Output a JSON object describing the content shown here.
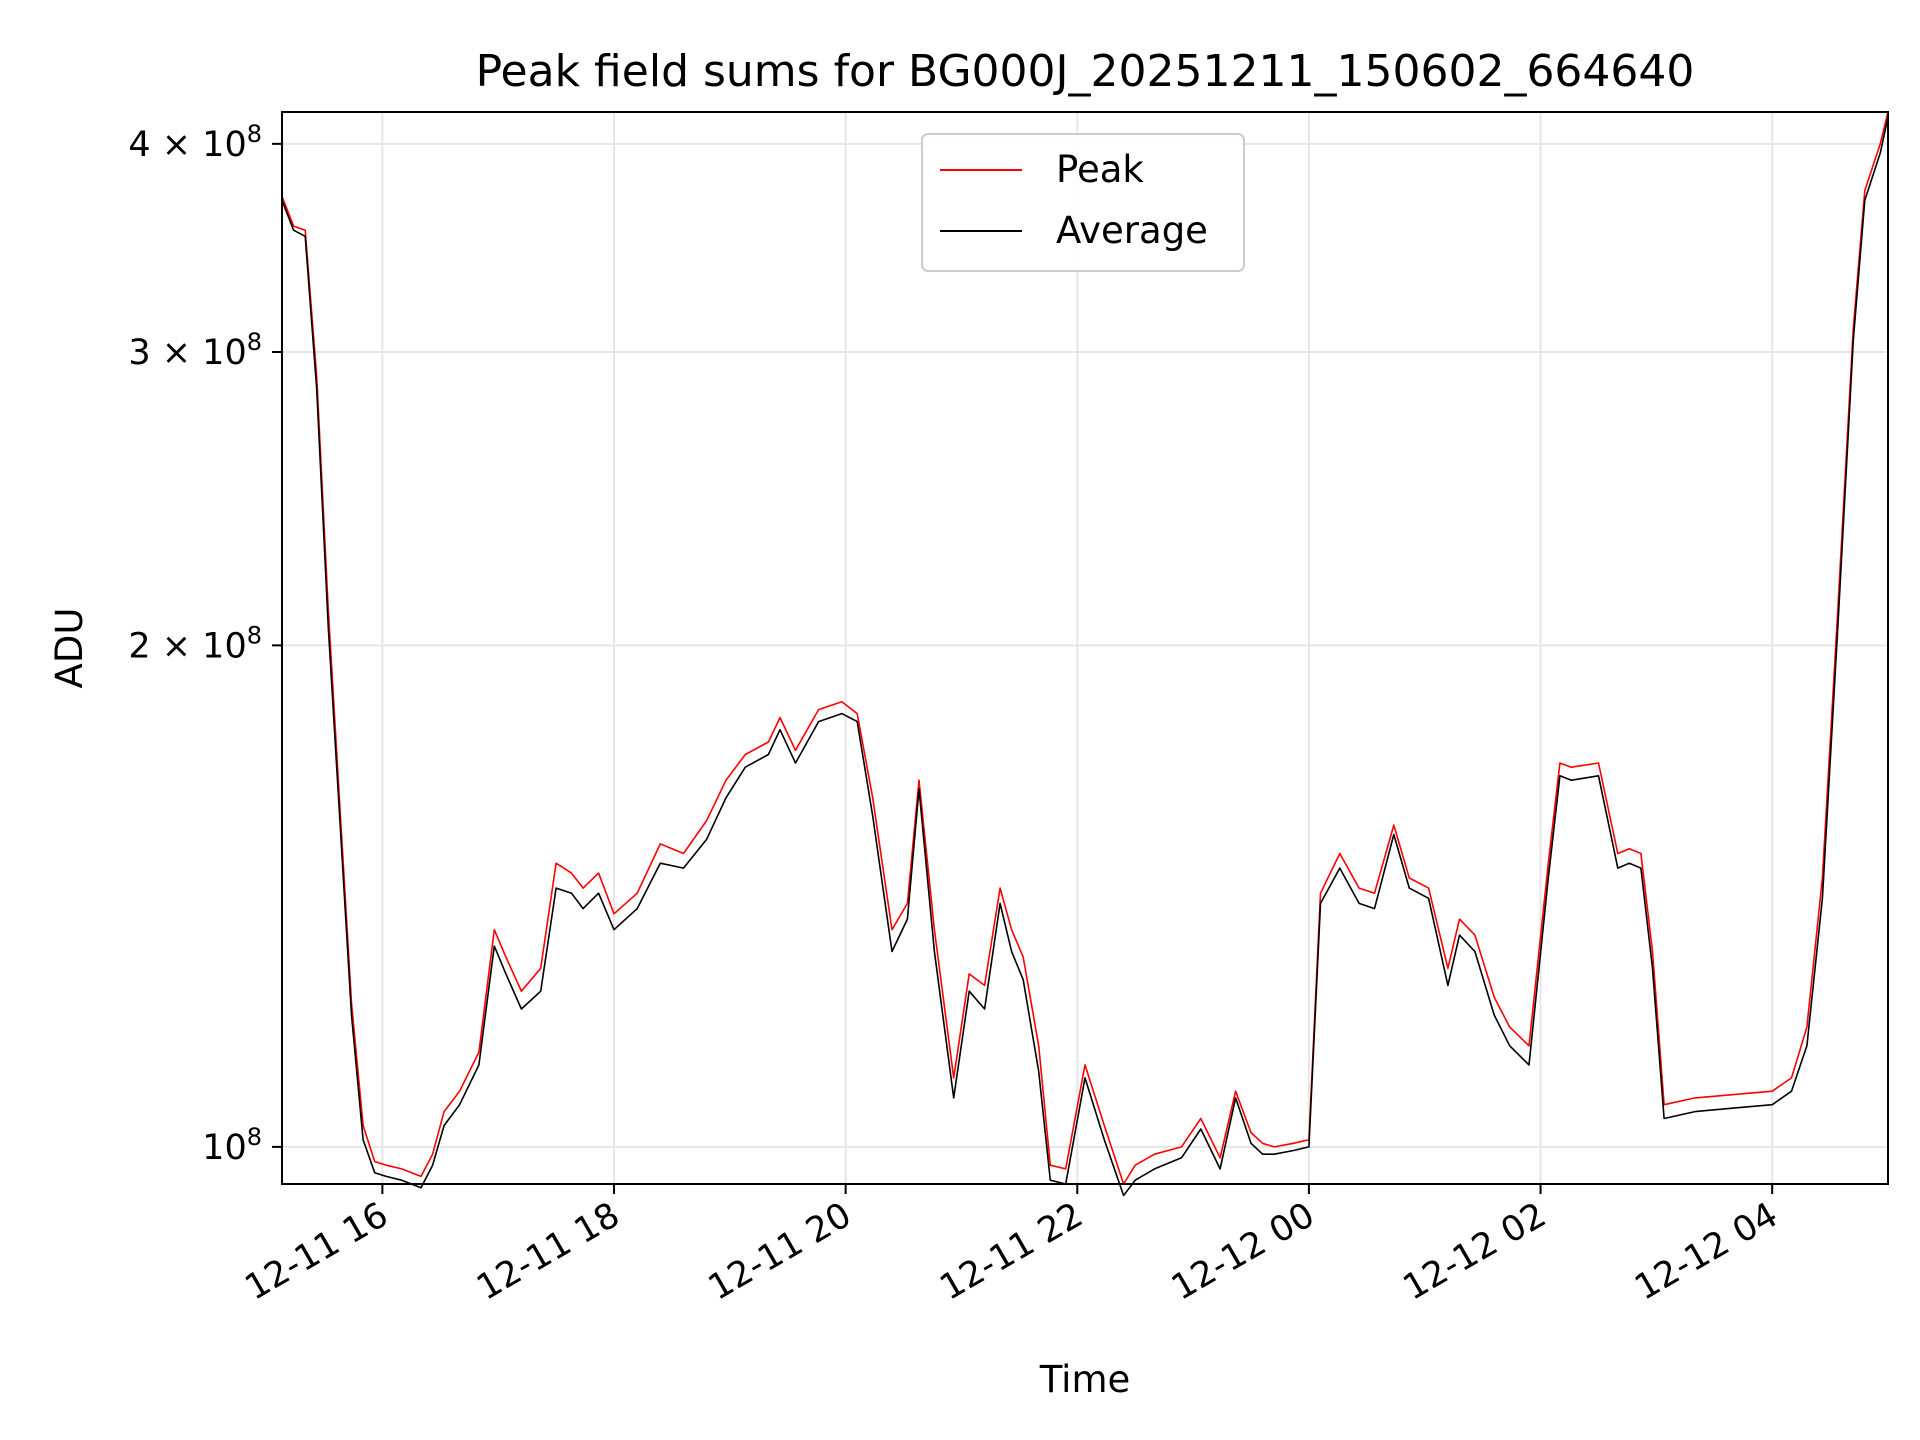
{
  "chart_data": {
    "type": "line",
    "title": "Peak field sums for BG000J_20251211_150602_664640",
    "xlabel": "Time",
    "ylabel": "ADU",
    "yscale": "log",
    "grid": true,
    "legend_position": "upper center",
    "xlim": [
      "2025-12-11 15:08",
      "2025-12-12 05:00"
    ],
    "ylim": [
      95000000,
      418000000
    ],
    "xticks": [
      {
        "value": "2025-12-11 16:00",
        "label": "12-11 16"
      },
      {
        "value": "2025-12-11 18:00",
        "label": "12-11 18"
      },
      {
        "value": "2025-12-11 20:00",
        "label": "12-11 20"
      },
      {
        "value": "2025-12-11 22:00",
        "label": "12-11 22"
      },
      {
        "value": "2025-12-12 00:00",
        "label": "12-12 00"
      },
      {
        "value": "2025-12-12 02:00",
        "label": "12-12 02"
      },
      {
        "value": "2025-12-12 04:00",
        "label": "12-12 04"
      }
    ],
    "yticks": [
      {
        "value": 100000000,
        "base": "10",
        "exp": "8"
      },
      {
        "value": 200000000,
        "base": "2 × 10",
        "exp": "8"
      },
      {
        "value": 300000000,
        "base": "3 × 10",
        "exp": "8"
      },
      {
        "value": 400000000,
        "base": "4 × 10",
        "exp": "8"
      }
    ],
    "colors": {
      "peak": "#ff0000",
      "average": "#000000",
      "grid": "#e6e6e6"
    },
    "series": [
      {
        "name": "Peak",
        "color": "#ff0000",
        "x": [
          "2025-12-11 15:08",
          "2025-12-11 15:14",
          "2025-12-11 15:20",
          "2025-12-11 15:26",
          "2025-12-11 15:32",
          "2025-12-11 15:38",
          "2025-12-11 15:44",
          "2025-12-11 15:50",
          "2025-12-11 15:56",
          "2025-12-11 16:02",
          "2025-12-11 16:10",
          "2025-12-11 16:20",
          "2025-12-11 16:26",
          "2025-12-11 16:32",
          "2025-12-11 16:40",
          "2025-12-11 16:50",
          "2025-12-11 16:58",
          "2025-12-11 17:04",
          "2025-12-11 17:12",
          "2025-12-11 17:22",
          "2025-12-11 17:30",
          "2025-12-11 17:38",
          "2025-12-11 17:44",
          "2025-12-11 17:52",
          "2025-12-11 18:00",
          "2025-12-11 18:12",
          "2025-12-11 18:24",
          "2025-12-11 18:36",
          "2025-12-11 18:48",
          "2025-12-11 18:58",
          "2025-12-11 19:08",
          "2025-12-11 19:20",
          "2025-12-11 19:26",
          "2025-12-11 19:34",
          "2025-12-11 19:46",
          "2025-12-11 19:58",
          "2025-12-11 20:06",
          "2025-12-11 20:14",
          "2025-12-11 20:24",
          "2025-12-11 20:32",
          "2025-12-11 20:38",
          "2025-12-11 20:46",
          "2025-12-11 20:56",
          "2025-12-11 21:04",
          "2025-12-11 21:12",
          "2025-12-11 21:20",
          "2025-12-11 21:26",
          "2025-12-11 21:32",
          "2025-12-11 21:40",
          "2025-12-11 21:46",
          "2025-12-11 21:54",
          "2025-12-11 22:04",
          "2025-12-11 22:14",
          "2025-12-11 22:24",
          "2025-12-11 22:30",
          "2025-12-11 22:40",
          "2025-12-11 22:54",
          "2025-12-11 23:04",
          "2025-12-11 23:14",
          "2025-12-11 23:22",
          "2025-12-11 23:30",
          "2025-12-11 23:36",
          "2025-12-11 23:42",
          "2025-12-11 23:52",
          "2025-12-12 00:00",
          "2025-12-12 00:06",
          "2025-12-12 00:16",
          "2025-12-12 00:26",
          "2025-12-12 00:34",
          "2025-12-12 00:44",
          "2025-12-12 00:52",
          "2025-12-12 01:02",
          "2025-12-12 01:12",
          "2025-12-12 01:18",
          "2025-12-12 01:26",
          "2025-12-12 01:36",
          "2025-12-12 01:44",
          "2025-12-12 01:54",
          "2025-12-12 02:04",
          "2025-12-12 02:10",
          "2025-12-12 02:16",
          "2025-12-12 02:30",
          "2025-12-12 02:40",
          "2025-12-12 02:46",
          "2025-12-12 02:52",
          "2025-12-12 02:58",
          "2025-12-12 03:04",
          "2025-12-12 03:20",
          "2025-12-12 03:40",
          "2025-12-12 04:00",
          "2025-12-12 04:10",
          "2025-12-12 04:18",
          "2025-12-12 04:26",
          "2025-12-12 04:34",
          "2025-12-12 04:42",
          "2025-12-12 04:48",
          "2025-12-12 04:56",
          "2025-12-12 05:00"
        ],
        "y": [
          372000000,
          357000000,
          355000000,
          290000000,
          210000000,
          160000000,
          122000000,
          103000000,
          98000000,
          97500000,
          97000000,
          96000000,
          99000000,
          105000000,
          108000000,
          114000000,
          135000000,
          130000000,
          124000000,
          128000000,
          148000000,
          146000000,
          143000000,
          146000000,
          138000000,
          142000000,
          152000000,
          150000000,
          157000000,
          166000000,
          172000000,
          175000000,
          181000000,
          173000000,
          183000000,
          185000000,
          182000000,
          162000000,
          135000000,
          140000000,
          166000000,
          135000000,
          110000000,
          127000000,
          125000000,
          143000000,
          135000000,
          130000000,
          115000000,
          97500000,
          97000000,
          112000000,
          103000000,
          95000000,
          97500000,
          99000000,
          100000000,
          104000000,
          98500000,
          108000000,
          102000000,
          100500000,
          100000000,
          100500000,
          101000000,
          142000000,
          150000000,
          143000000,
          142000000,
          156000000,
          145000000,
          143000000,
          128000000,
          137000000,
          134000000,
          123000000,
          118000000,
          115000000,
          148000000,
          170000000,
          169000000,
          170000000,
          150000000,
          151000000,
          150000000,
          131000000,
          106000000,
          107000000,
          107500000,
          108000000,
          110000000,
          118000000,
          145000000,
          210000000,
          310000000,
          375000000,
          400000000,
          418000000
        ]
      },
      {
        "name": "Average",
        "color": "#000000",
        "x": [
          "2025-12-11 15:08",
          "2025-12-11 15:14",
          "2025-12-11 15:20",
          "2025-12-11 15:26",
          "2025-12-11 15:32",
          "2025-12-11 15:38",
          "2025-12-11 15:44",
          "2025-12-11 15:50",
          "2025-12-11 15:56",
          "2025-12-11 16:02",
          "2025-12-11 16:10",
          "2025-12-11 16:20",
          "2025-12-11 16:26",
          "2025-12-11 16:32",
          "2025-12-11 16:40",
          "2025-12-11 16:50",
          "2025-12-11 16:58",
          "2025-12-11 17:04",
          "2025-12-11 17:12",
          "2025-12-11 17:22",
          "2025-12-11 17:30",
          "2025-12-11 17:38",
          "2025-12-11 17:44",
          "2025-12-11 17:52",
          "2025-12-11 18:00",
          "2025-12-11 18:12",
          "2025-12-11 18:24",
          "2025-12-11 18:36",
          "2025-12-11 18:48",
          "2025-12-11 18:58",
          "2025-12-11 19:08",
          "2025-12-11 19:20",
          "2025-12-11 19:26",
          "2025-12-11 19:34",
          "2025-12-11 19:46",
          "2025-12-11 19:58",
          "2025-12-11 20:06",
          "2025-12-11 20:14",
          "2025-12-11 20:24",
          "2025-12-11 20:32",
          "2025-12-11 20:38",
          "2025-12-11 20:46",
          "2025-12-11 20:56",
          "2025-12-11 21:04",
          "2025-12-11 21:12",
          "2025-12-11 21:20",
          "2025-12-11 21:26",
          "2025-12-11 21:32",
          "2025-12-11 21:40",
          "2025-12-11 21:46",
          "2025-12-11 21:54",
          "2025-12-11 22:04",
          "2025-12-11 22:14",
          "2025-12-11 22:24",
          "2025-12-11 22:30",
          "2025-12-11 22:40",
          "2025-12-11 22:54",
          "2025-12-11 23:04",
          "2025-12-11 23:14",
          "2025-12-11 23:22",
          "2025-12-11 23:30",
          "2025-12-11 23:36",
          "2025-12-11 23:42",
          "2025-12-11 23:52",
          "2025-12-12 00:00",
          "2025-12-12 00:06",
          "2025-12-12 00:16",
          "2025-12-12 00:26",
          "2025-12-12 00:34",
          "2025-12-12 00:44",
          "2025-12-12 00:52",
          "2025-12-12 01:02",
          "2025-12-12 01:12",
          "2025-12-12 01:18",
          "2025-12-12 01:26",
          "2025-12-12 01:36",
          "2025-12-12 01:44",
          "2025-12-12 01:54",
          "2025-12-12 02:04",
          "2025-12-12 02:10",
          "2025-12-12 02:16",
          "2025-12-12 02:30",
          "2025-12-12 02:40",
          "2025-12-12 02:46",
          "2025-12-12 02:52",
          "2025-12-12 02:58",
          "2025-12-12 03:04",
          "2025-12-12 03:20",
          "2025-12-12 03:40",
          "2025-12-12 04:00",
          "2025-12-12 04:10",
          "2025-12-12 04:18",
          "2025-12-12 04:26",
          "2025-12-12 04:34",
          "2025-12-12 04:42",
          "2025-12-12 04:48",
          "2025-12-12 04:56",
          "2025-12-12 05:00"
        ],
        "y": [
          370000000,
          355000000,
          352000000,
          285000000,
          205000000,
          157000000,
          120000000,
          101000000,
          96500000,
          96000000,
          95500000,
          94500000,
          97500000,
          103000000,
          106000000,
          112000000,
          132000000,
          127000000,
          121000000,
          124000000,
          143000000,
          142000000,
          139000000,
          142000000,
          135000000,
          139000000,
          148000000,
          147000000,
          153000000,
          162000000,
          169000000,
          172000000,
          178000000,
          170000000,
          180000000,
          182000000,
          180000000,
          158000000,
          131000000,
          137000000,
          164000000,
          131000000,
          107000000,
          124000000,
          121000000,
          140000000,
          131000000,
          126000000,
          111000000,
          95500000,
          95000000,
          110000000,
          101000000,
          93500000,
          95500000,
          97000000,
          98500000,
          102500000,
          97000000,
          107000000,
          100500000,
          99000000,
          99000000,
          99500000,
          100000000,
          140000000,
          147000000,
          140000000,
          139000000,
          154000000,
          143000000,
          141000000,
          125000000,
          134000000,
          131000000,
          120000000,
          115000000,
          112000000,
          145000000,
          167000000,
          166000000,
          167000000,
          147000000,
          148000000,
          147000000,
          128000000,
          104000000,
          105000000,
          105500000,
          106000000,
          108000000,
          115000000,
          141000000,
          205000000,
          305000000,
          370000000,
          395000000,
          415000000
        ]
      }
    ]
  }
}
